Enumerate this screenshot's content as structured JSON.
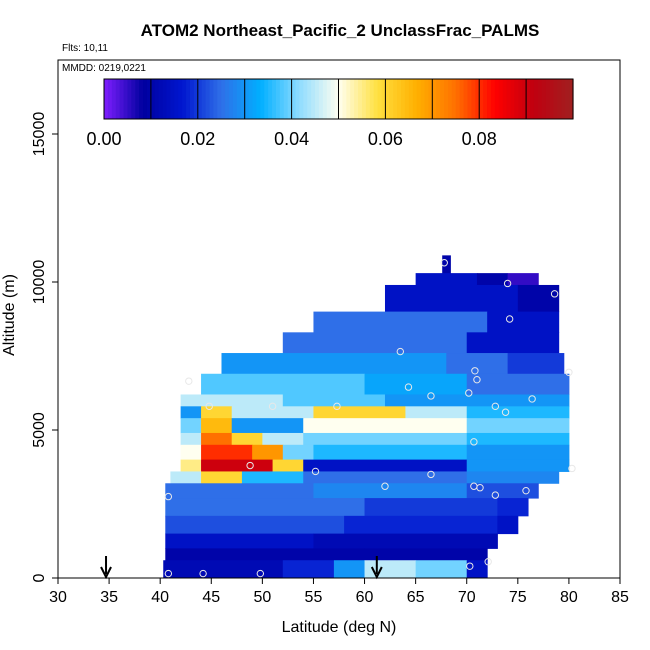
{
  "chart_data": {
    "type": "heatmap",
    "title": "ATOM2 Northeast_Pacific_2 UnclassFrac_PALMS",
    "flights_label": "Flts: 10,11",
    "dates_label": "MMDD: 0219,0221",
    "xlabel": "Latitude (deg N)",
    "ylabel": "Altitude (m)",
    "xlim": [
      30,
      85
    ],
    "ylim": [
      0,
      17500
    ],
    "xticks": [
      30,
      35,
      40,
      45,
      50,
      55,
      60,
      65,
      70,
      75,
      80,
      85
    ],
    "yticks": [
      0,
      5000,
      10000,
      15000
    ],
    "colorbar": {
      "range": [
        0,
        0.1
      ],
      "ticks": [
        0.0,
        0.02,
        0.04,
        0.06,
        0.08
      ],
      "tick_labels": [
        "0.00",
        "0.02",
        "0.04",
        "0.06",
        "0.08"
      ],
      "colors": [
        "#7f1fff",
        "#00009f",
        "#0016cf",
        "#2f6fe8",
        "#00afff",
        "#8fdcff",
        "#fffff0",
        "#ffe040",
        "#ffb000",
        "#ff7000",
        "#ff0000",
        "#c00010",
        "#a02020"
      ]
    },
    "layers": [
      {
        "alt_range": [
          10300,
          10900
        ],
        "segments": [
          [
            67.6,
            68.4,
            0.01
          ]
        ]
      },
      {
        "alt_range": [
          9900,
          10300
        ],
        "segments": [
          [
            65,
            71,
            0.015
          ],
          [
            71,
            74,
            0.01
          ],
          [
            74,
            77,
            0.005
          ]
        ]
      },
      {
        "alt_range": [
          9000,
          9900
        ],
        "segments": [
          [
            62,
            75,
            0.015
          ],
          [
            75,
            79,
            0.01
          ]
        ]
      },
      {
        "alt_range": [
          8300,
          9000
        ],
        "segments": [
          [
            55,
            72,
            0.025
          ],
          [
            72,
            79,
            0.015
          ]
        ]
      },
      {
        "alt_range": [
          7600,
          8300
        ],
        "segments": [
          [
            52,
            70,
            0.025
          ],
          [
            70,
            79,
            0.015
          ]
        ]
      },
      {
        "alt_range": [
          6900,
          7600
        ],
        "segments": [
          [
            46,
            68,
            0.03
          ],
          [
            68,
            74,
            0.025
          ],
          [
            74,
            79.5,
            0.02
          ]
        ]
      },
      {
        "alt_range": [
          6200,
          6900
        ],
        "segments": [
          [
            44,
            60,
            0.038
          ],
          [
            60,
            70,
            0.032
          ],
          [
            70,
            80,
            0.025
          ]
        ]
      },
      {
        "alt_range": [
          5800,
          6200
        ],
        "segments": [
          [
            42,
            52,
            0.045
          ],
          [
            52,
            62,
            0.038
          ],
          [
            62,
            80,
            0.03
          ]
        ]
      },
      {
        "alt_range": [
          5400,
          5800
        ],
        "segments": [
          [
            42,
            44,
            0.03
          ],
          [
            44,
            47,
            0.06
          ],
          [
            47,
            55,
            0.045
          ],
          [
            55,
            64,
            0.06
          ],
          [
            64,
            70,
            0.045
          ],
          [
            70,
            80,
            0.035
          ]
        ]
      },
      {
        "alt_range": [
          4900,
          5400
        ],
        "segments": [
          [
            42,
            44,
            0.04
          ],
          [
            44,
            47,
            0.065
          ],
          [
            47,
            54,
            0.03
          ],
          [
            54,
            70,
            0.05
          ],
          [
            70,
            80,
            0.04
          ]
        ]
      },
      {
        "alt_range": [
          4500,
          4900
        ],
        "segments": [
          [
            42,
            44,
            0.045
          ],
          [
            44,
            47,
            0.075
          ],
          [
            47,
            50,
            0.06
          ],
          [
            50,
            54,
            0.045
          ],
          [
            54,
            70,
            0.04
          ],
          [
            70,
            80,
            0.035
          ]
        ]
      },
      {
        "alt_range": [
          4000,
          4500
        ],
        "segments": [
          [
            42,
            44,
            0.05
          ],
          [
            44,
            49,
            0.08
          ],
          [
            49,
            52,
            0.07
          ],
          [
            52,
            55,
            0.04
          ],
          [
            55,
            70,
            0.035
          ],
          [
            70,
            80,
            0.03
          ]
        ]
      },
      {
        "alt_range": [
          3600,
          4000
        ],
        "segments": [
          [
            42,
            44,
            0.055
          ],
          [
            44,
            51,
            0.09
          ],
          [
            51,
            54,
            0.06
          ],
          [
            54,
            70,
            0.015
          ],
          [
            70,
            80,
            0.03
          ]
        ]
      },
      {
        "alt_range": [
          3200,
          3600
        ],
        "segments": [
          [
            41,
            44,
            0.045
          ],
          [
            44,
            48,
            0.06
          ],
          [
            48,
            54,
            0.035
          ],
          [
            54,
            70,
            0.025
          ],
          [
            70,
            79,
            0.028
          ]
        ]
      },
      {
        "alt_range": [
          2700,
          3200
        ],
        "segments": [
          [
            40.5,
            55,
            0.025
          ],
          [
            55,
            70,
            0.028
          ],
          [
            70,
            77,
            0.022
          ]
        ]
      },
      {
        "alt_range": [
          2100,
          2700
        ],
        "segments": [
          [
            40.5,
            60,
            0.025
          ],
          [
            60,
            73,
            0.02
          ],
          [
            73,
            76,
            0.018
          ]
        ]
      },
      {
        "alt_range": [
          1500,
          2100
        ],
        "segments": [
          [
            40.5,
            58,
            0.022
          ],
          [
            58,
            73,
            0.018
          ],
          [
            73,
            75,
            0.015
          ]
        ]
      },
      {
        "alt_range": [
          1000,
          1500
        ],
        "segments": [
          [
            40.5,
            55,
            0.015
          ],
          [
            55,
            73,
            0.012
          ]
        ]
      },
      {
        "alt_range": [
          600,
          1000
        ],
        "segments": [
          [
            40.5,
            60,
            0.01
          ],
          [
            60,
            72,
            0.01
          ]
        ]
      },
      {
        "alt_range": [
          0,
          600
        ],
        "segments": [
          [
            40.3,
            52,
            0.012
          ],
          [
            52,
            57,
            0.018
          ],
          [
            57,
            60,
            0.03
          ],
          [
            60,
            65,
            0.045
          ],
          [
            65,
            70,
            0.04
          ],
          [
            70,
            72,
            0.015
          ]
        ]
      }
    ],
    "observations": [
      [
        67.8,
        10650
      ],
      [
        74,
        9950
      ],
      [
        78.6,
        9600
      ],
      [
        74.2,
        8750
      ],
      [
        63.5,
        7650
      ],
      [
        70.8,
        7000
      ],
      [
        80,
        6950
      ],
      [
        71,
        6700
      ],
      [
        42.8,
        6650
      ],
      [
        64.3,
        6450
      ],
      [
        66.5,
        6150
      ],
      [
        70.2,
        6250
      ],
      [
        76.4,
        6050
      ],
      [
        44.8,
        5800
      ],
      [
        51,
        5800
      ],
      [
        57.3,
        5800
      ],
      [
        72.8,
        5800
      ],
      [
        73.8,
        5600
      ],
      [
        70.7,
        4600
      ],
      [
        48.8,
        3800
      ],
      [
        55.2,
        3600
      ],
      [
        66.5,
        3500
      ],
      [
        80.3,
        3700
      ],
      [
        62,
        3100
      ],
      [
        70.7,
        3100
      ],
      [
        71.3,
        3050
      ],
      [
        72.8,
        2800
      ],
      [
        75.8,
        2950
      ],
      [
        40.8,
        2750
      ],
      [
        72.1,
        550
      ],
      [
        70.3,
        400
      ],
      [
        40.8,
        150
      ],
      [
        44.2,
        150
      ],
      [
        49.8,
        150
      ]
    ],
    "markers_x": [
      34.7,
      61.2
    ]
  }
}
